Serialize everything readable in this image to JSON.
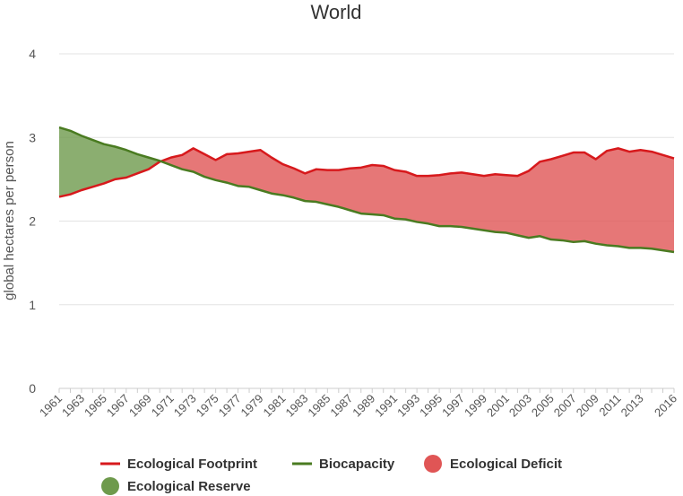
{
  "chart_data": {
    "type": "area",
    "title": "World",
    "ylabel": "global hectares per person",
    "xlabel": "",
    "ylim": [
      0,
      4
    ],
    "yticks": [
      0,
      1,
      2,
      3,
      4
    ],
    "x": [
      1961,
      1962,
      1963,
      1964,
      1965,
      1966,
      1967,
      1968,
      1969,
      1970,
      1971,
      1972,
      1973,
      1974,
      1975,
      1976,
      1977,
      1978,
      1979,
      1980,
      1981,
      1982,
      1983,
      1984,
      1985,
      1986,
      1987,
      1988,
      1989,
      1990,
      1991,
      1992,
      1993,
      1994,
      1995,
      1996,
      1997,
      1998,
      1999,
      2000,
      2001,
      2002,
      2003,
      2004,
      2005,
      2006,
      2007,
      2008,
      2009,
      2010,
      2011,
      2012,
      2013,
      2014,
      2015,
      2016
    ],
    "xtick_labels": [
      "1961",
      "1963",
      "1965",
      "1967",
      "1969",
      "1971",
      "1973",
      "1975",
      "1977",
      "1979",
      "1981",
      "1983",
      "1985",
      "1987",
      "1989",
      "1991",
      "1993",
      "1995",
      "1997",
      "1999",
      "2001",
      "2003",
      "2005",
      "2007",
      "2009",
      "2011",
      "2013",
      "2016"
    ],
    "series": [
      {
        "name": "Ecological Footprint",
        "color": "#d7191c",
        "values": [
          2.29,
          2.32,
          2.37,
          2.41,
          2.45,
          2.5,
          2.52,
          2.57,
          2.62,
          2.71,
          2.76,
          2.79,
          2.87,
          2.8,
          2.73,
          2.8,
          2.81,
          2.83,
          2.85,
          2.76,
          2.68,
          2.63,
          2.57,
          2.62,
          2.61,
          2.61,
          2.63,
          2.64,
          2.67,
          2.66,
          2.61,
          2.59,
          2.54,
          2.54,
          2.55,
          2.57,
          2.58,
          2.56,
          2.54,
          2.56,
          2.55,
          2.54,
          2.6,
          2.71,
          2.74,
          2.78,
          2.82,
          2.82,
          2.74,
          2.84,
          2.87,
          2.83,
          2.85,
          2.83,
          2.79,
          2.75
        ]
      },
      {
        "name": "Biocapacity",
        "color": "#4a7b21",
        "values": [
          3.12,
          3.08,
          3.02,
          2.97,
          2.92,
          2.89,
          2.85,
          2.8,
          2.76,
          2.72,
          2.67,
          2.62,
          2.59,
          2.53,
          2.49,
          2.46,
          2.42,
          2.41,
          2.37,
          2.33,
          2.31,
          2.28,
          2.24,
          2.23,
          2.2,
          2.17,
          2.13,
          2.09,
          2.08,
          2.07,
          2.03,
          2.02,
          1.99,
          1.97,
          1.94,
          1.94,
          1.93,
          1.91,
          1.89,
          1.87,
          1.86,
          1.83,
          1.8,
          1.82,
          1.78,
          1.77,
          1.75,
          1.76,
          1.73,
          1.71,
          1.7,
          1.68,
          1.68,
          1.67,
          1.65,
          1.63
        ]
      }
    ],
    "legend": [
      {
        "label": "Ecological Footprint",
        "symbol": "line",
        "color": "#d7191c"
      },
      {
        "label": "Biocapacity",
        "symbol": "line",
        "color": "#4a7b21"
      },
      {
        "label": "Ecological Deficit",
        "symbol": "circle",
        "color": "#e05555"
      },
      {
        "label": "Ecological Reserve",
        "symbol": "circle",
        "color": "#6e9a4c"
      }
    ],
    "deficit_fill": "#e05555",
    "reserve_fill": "#6e9a4c",
    "legend_position": "bottom-center",
    "grid": true
  }
}
